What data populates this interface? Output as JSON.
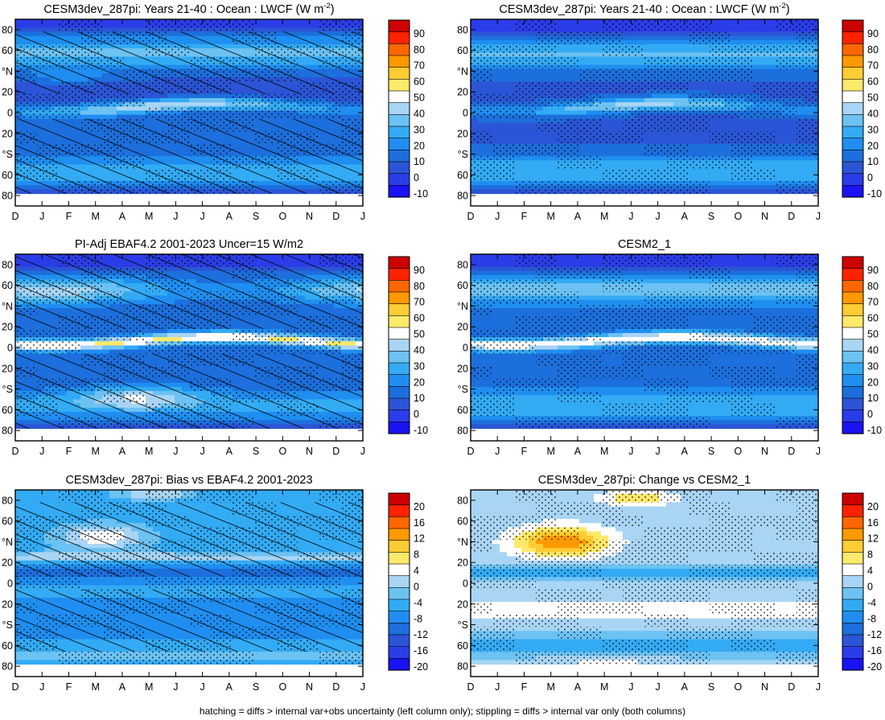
{
  "footer_note": "hatching = diffs > internal var+obs uncertainty (left column only); stippling = diffs > internal var only (both columns)",
  "chart_data": [
    {
      "type": "heatmap",
      "title": "CESM3dev_287pi: Years 21-40 : Ocean : LWCF (W m",
      "title_superscript": "-2",
      "title_suffix": ")",
      "x_ticks": [
        "D",
        "J",
        "F",
        "M",
        "A",
        "M",
        "J",
        "J",
        "A",
        "S",
        "O",
        "N",
        "D",
        "J"
      ],
      "y_ticks": [
        "80",
        "60",
        "°N",
        "20",
        "0",
        "20",
        "°S",
        "60",
        "80"
      ],
      "colorbar_labels": [
        "90",
        "80",
        "70",
        "60",
        "50",
        "40",
        "30",
        "20",
        "10",
        "0",
        "-10"
      ],
      "colorbar_colors": [
        "#cc0000",
        "#ff2200",
        "#ff6600",
        "#ff9900",
        "#ffcc33",
        "#fde96a",
        "#ffffff",
        "#a9d5f5",
        "#6cc2f2",
        "#33abf4",
        "#1f8ef0",
        "#1c6fdc",
        "#2b55d6",
        "#2a3de8",
        "#1a12f2"
      ],
      "levels": [
        -10,
        0,
        10,
        20,
        30,
        40,
        50,
        60,
        70,
        80,
        90
      ],
      "hatching": true,
      "stippling": true,
      "field": "p1"
    },
    {
      "type": "heatmap",
      "title": "CESM3dev_287pi: Years 21-40 : Ocean : LWCF (W m",
      "title_superscript": "-2",
      "title_suffix": ")",
      "x_ticks": [
        "D",
        "J",
        "F",
        "M",
        "A",
        "M",
        "J",
        "J",
        "A",
        "S",
        "O",
        "N",
        "D",
        "J"
      ],
      "y_ticks": [
        "80",
        "60",
        "°N",
        "20",
        "0",
        "20",
        "°S",
        "60",
        "80"
      ],
      "colorbar_labels": [
        "90",
        "80",
        "70",
        "60",
        "50",
        "40",
        "30",
        "20",
        "10",
        "0",
        "-10"
      ],
      "colorbar_colors": [
        "#cc0000",
        "#ff2200",
        "#ff6600",
        "#ff9900",
        "#ffcc33",
        "#fde96a",
        "#ffffff",
        "#a9d5f5",
        "#6cc2f2",
        "#33abf4",
        "#1f8ef0",
        "#1c6fdc",
        "#2b55d6",
        "#2a3de8",
        "#1a12f2"
      ],
      "levels": [
        -10,
        0,
        10,
        20,
        30,
        40,
        50,
        60,
        70,
        80,
        90
      ],
      "hatching": false,
      "stippling": true,
      "field": "p2"
    },
    {
      "type": "heatmap",
      "title": "PI-Adj EBAF4.2 2001-2023 Uncer=15 W/m2",
      "title_superscript": "",
      "title_suffix": "",
      "x_ticks": [
        "D",
        "J",
        "F",
        "M",
        "A",
        "M",
        "J",
        "J",
        "A",
        "S",
        "O",
        "N",
        "D",
        "J"
      ],
      "y_ticks": [
        "80",
        "60",
        "°N",
        "20",
        "0",
        "20",
        "°S",
        "60",
        "80"
      ],
      "colorbar_labels": [
        "90",
        "80",
        "70",
        "60",
        "50",
        "40",
        "30",
        "20",
        "10",
        "0",
        "-10"
      ],
      "colorbar_colors": [
        "#cc0000",
        "#ff2200",
        "#ff6600",
        "#ff9900",
        "#ffcc33",
        "#fde96a",
        "#ffffff",
        "#a9d5f5",
        "#6cc2f2",
        "#33abf4",
        "#1f8ef0",
        "#1c6fdc",
        "#2b55d6",
        "#2a3de8",
        "#1a12f2"
      ],
      "levels": [
        -10,
        0,
        10,
        20,
        30,
        40,
        50,
        60,
        70,
        80,
        90
      ],
      "hatching": true,
      "stippling": true,
      "field": "p3"
    },
    {
      "type": "heatmap",
      "title": "CESM2_1",
      "title_superscript": "",
      "title_suffix": "",
      "x_ticks": [
        "D",
        "J",
        "F",
        "M",
        "A",
        "M",
        "J",
        "J",
        "A",
        "S",
        "O",
        "N",
        "D",
        "J"
      ],
      "y_ticks": [
        "80",
        "60",
        "°N",
        "20",
        "0",
        "20",
        "°S",
        "60",
        "80"
      ],
      "colorbar_labels": [
        "90",
        "80",
        "70",
        "60",
        "50",
        "40",
        "30",
        "20",
        "10",
        "0",
        "-10"
      ],
      "colorbar_colors": [
        "#cc0000",
        "#ff2200",
        "#ff6600",
        "#ff9900",
        "#ffcc33",
        "#fde96a",
        "#ffffff",
        "#a9d5f5",
        "#6cc2f2",
        "#33abf4",
        "#1f8ef0",
        "#1c6fdc",
        "#2b55d6",
        "#2a3de8",
        "#1a12f2"
      ],
      "levels": [
        -10,
        0,
        10,
        20,
        30,
        40,
        50,
        60,
        70,
        80,
        90
      ],
      "hatching": false,
      "stippling": true,
      "field": "p4"
    },
    {
      "type": "heatmap",
      "title": "CESM3dev_287pi: Bias vs EBAF4.2 2001-2023",
      "title_superscript": "",
      "title_suffix": "",
      "x_ticks": [
        "D",
        "J",
        "F",
        "M",
        "A",
        "M",
        "J",
        "J",
        "A",
        "S",
        "O",
        "N",
        "D",
        "J"
      ],
      "y_ticks": [
        "80",
        "60",
        "°N",
        "20",
        "0",
        "20",
        "°S",
        "60",
        "80"
      ],
      "colorbar_labels": [
        "20",
        "16",
        "12",
        "8",
        "4",
        "0",
        "-4",
        "-8",
        "-12",
        "-16",
        "-20"
      ],
      "colorbar_colors": [
        "#cc0000",
        "#ff2200",
        "#ff6600",
        "#ff9900",
        "#ffcc33",
        "#fde96a",
        "#ffffff",
        "#a9d5f5",
        "#6cc2f2",
        "#33abf4",
        "#1f8ef0",
        "#1c6fdc",
        "#2b55d6",
        "#2a3de8",
        "#1a12f2"
      ],
      "levels": [
        -20,
        -16,
        -12,
        -8,
        -4,
        0,
        4,
        8,
        12,
        16,
        20
      ],
      "hatching": true,
      "stippling": true,
      "field": "p5"
    },
    {
      "type": "heatmap",
      "title": "CESM3dev_287pi: Change vs CESM2_1",
      "title_superscript": "",
      "title_suffix": "",
      "x_ticks": [
        "D",
        "J",
        "F",
        "M",
        "A",
        "M",
        "J",
        "J",
        "A",
        "S",
        "O",
        "N",
        "D",
        "J"
      ],
      "y_ticks": [
        "80",
        "60",
        "°N",
        "20",
        "0",
        "20",
        "°S",
        "60",
        "80"
      ],
      "colorbar_labels": [
        "20",
        "16",
        "12",
        "8",
        "4",
        "0",
        "-4",
        "-8",
        "-12",
        "-16",
        "-20"
      ],
      "colorbar_colors": [
        "#cc0000",
        "#ff2200",
        "#ff6600",
        "#ff9900",
        "#ffcc33",
        "#fde96a",
        "#ffffff",
        "#a9d5f5",
        "#6cc2f2",
        "#33abf4",
        "#1f8ef0",
        "#1c6fdc",
        "#2b55d6",
        "#2a3de8",
        "#1a12f2"
      ],
      "levels": [
        -20,
        -16,
        -12,
        -8,
        -4,
        0,
        4,
        8,
        12,
        16,
        20
      ],
      "hatching": false,
      "stippling": true,
      "field": "p6"
    }
  ]
}
